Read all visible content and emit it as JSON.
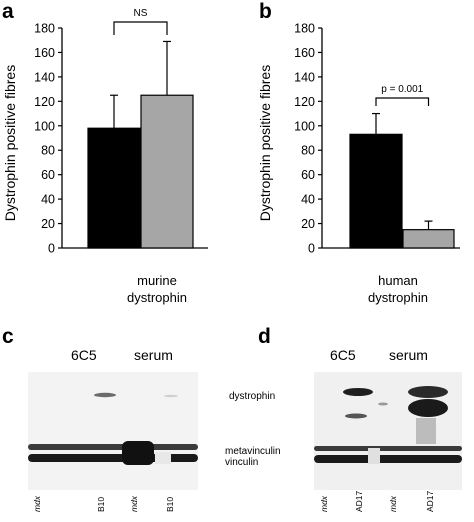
{
  "panels": {
    "a": {
      "letter": "a"
    },
    "b": {
      "letter": "b"
    },
    "c": {
      "letter": "c",
      "headers": [
        "6C5",
        "serum"
      ],
      "lanes": [
        "mdx",
        "B10",
        "mdx",
        "B10"
      ]
    },
    "d": {
      "letter": "d",
      "headers": [
        "6C5",
        "serum"
      ],
      "lanes": [
        "mdx",
        "AD17",
        "mdx",
        "AD17"
      ],
      "band_labels": [
        "dystrophin",
        "metavinculin",
        "vinculin"
      ]
    }
  },
  "colors": {
    "black_bar": "#000000",
    "grey_bar": "#a6a6a6",
    "axis": "#000000",
    "blot_bg": "#f1f1f1"
  },
  "chart_data": [
    {
      "type": "bar",
      "ylabel": "Dystrophin positive fibres",
      "yticks": [
        0,
        20,
        40,
        60,
        80,
        100,
        120,
        140,
        160,
        180
      ],
      "ylim": [
        0,
        180
      ],
      "xlabel": [
        "murine",
        "dystrophin"
      ],
      "values": [
        98,
        125
      ],
      "errors": [
        27,
        44
      ],
      "bar_colors": [
        "#000000",
        "#a6a6a6"
      ],
      "significance": "NS",
      "grid": false
    },
    {
      "type": "bar",
      "ylabel": "Dystrophin positive fibres",
      "yticks": [
        0,
        20,
        40,
        60,
        80,
        100,
        120,
        140,
        160,
        180
      ],
      "ylim": [
        0,
        180
      ],
      "xlabel": [
        "human",
        "dystrophin"
      ],
      "values": [
        93,
        15
      ],
      "errors": [
        17,
        7
      ],
      "bar_colors": [
        "#000000",
        "#a6a6a6"
      ],
      "significance": "p = 0.001",
      "grid": false
    }
  ]
}
